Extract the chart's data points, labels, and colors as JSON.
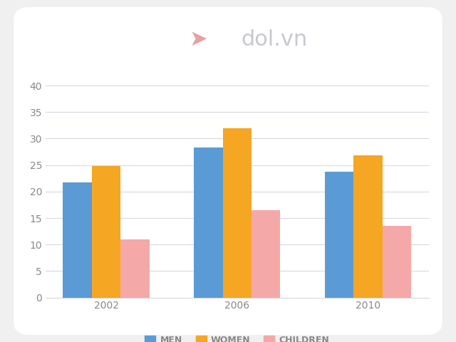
{
  "years": [
    "2002",
    "2006",
    "2010"
  ],
  "men": [
    21.7,
    28.3,
    23.7
  ],
  "women": [
    24.8,
    32.0,
    26.8
  ],
  "children": [
    11.0,
    16.5,
    13.5
  ],
  "men_color": "#5b9bd5",
  "women_color": "#f5a623",
  "children_color": "#f4a9a8",
  "background_color": "#f0f0f0",
  "card_color": "#ffffff",
  "grid_color": "#d8d8e0",
  "tick_color": "#888888",
  "ylim": [
    0,
    40
  ],
  "yticks": [
    0,
    5,
    10,
    15,
    20,
    25,
    30,
    35,
    40
  ],
  "legend_labels": [
    "MEN",
    "WOMEN",
    "CHILDREN"
  ],
  "bar_width": 0.22,
  "watermark_text": "dol.vn",
  "watermark_color": "#c8c8d0",
  "watermark_pink": "#e8a0a0"
}
